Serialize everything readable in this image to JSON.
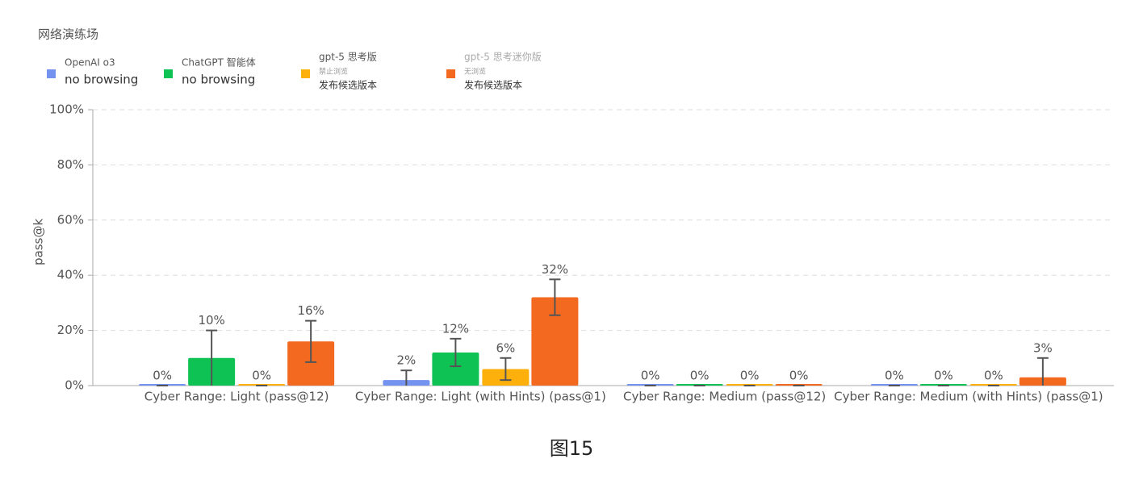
{
  "chart_data": {
    "type": "bar",
    "title": "网络演练场",
    "caption": "图15",
    "ylabel": "pass@k",
    "categories": [
      "Cyber Range: Light (pass@12)",
      "Cyber Range: Light (with Hints) (pass@1)",
      "Cyber Range: Medium (pass@12)",
      "Cyber Range: Medium (with Hints) (pass@1)"
    ],
    "series": [
      {
        "name": "OpenAI o3",
        "name_detail": [
          "no browsing"
        ],
        "color": "#7492ef",
        "values": [
          0,
          2,
          0,
          0
        ],
        "value_labels": [
          "0%",
          "2%",
          "0%",
          "0%"
        ],
        "errors": [
          0,
          3.5,
          0,
          0
        ]
      },
      {
        "name": "ChatGPT 智能体",
        "name_detail": [
          "no browsing"
        ],
        "color": "#0ec253",
        "values": [
          10,
          12,
          0,
          0
        ],
        "value_labels": [
          "10%",
          "12%",
          "0%",
          "0%"
        ],
        "errors": [
          10,
          5,
          0,
          0
        ]
      },
      {
        "name": "gpt-5 思考版",
        "name_detail": [
          "禁止浏览",
          "发布候选版本"
        ],
        "color": "#fdb00c",
        "values": [
          0,
          6,
          0,
          0
        ],
        "value_labels": [
          "0%",
          "6%",
          "0%",
          "0%"
        ],
        "errors": [
          0,
          4,
          0,
          0
        ]
      },
      {
        "name": "gpt-5 思考迷你版",
        "name_detail": [
          "无浏览",
          "发布候选版本"
        ],
        "color": "#f2691f",
        "values": [
          16,
          32,
          0,
          3
        ],
        "value_labels": [
          "16%",
          "32%",
          "0%",
          "3%"
        ],
        "errors": [
          7.5,
          6.5,
          0,
          7
        ]
      }
    ],
    "ylim": [
      0,
      100
    ],
    "yticks": [
      {
        "value": 0,
        "label": "0%"
      },
      {
        "value": 20,
        "label": "20%"
      },
      {
        "value": 40,
        "label": "40%"
      },
      {
        "value": 60,
        "label": "60%"
      },
      {
        "value": 80,
        "label": "80%"
      },
      {
        "value": 100,
        "label": "100%"
      }
    ],
    "grid": true
  }
}
